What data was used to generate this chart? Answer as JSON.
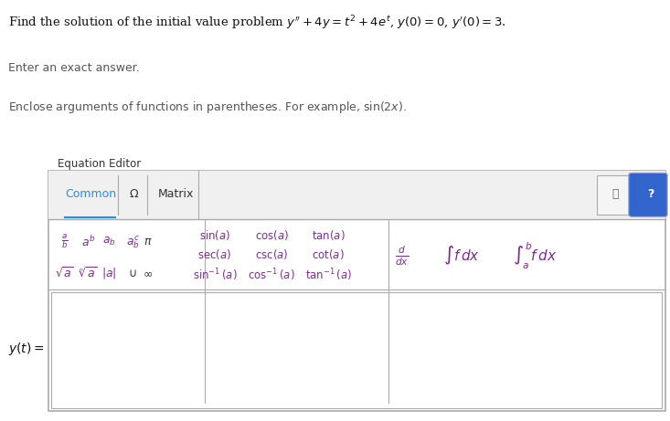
{
  "bg_color": "#ffffff",
  "title_text": "Find the solution of the initial value problem $y'' + 4y = t^2 + 4e^t$, $y(0) = 0$, $y'(0) = 3$.",
  "subtitle1": "Enter an exact answer.",
  "subtitle2": "Enclose arguments of functions in parentheses. For example, $\\sin(2x)$.",
  "eq_editor_label": "Equation Editor",
  "tab_common": "Common",
  "tab_omega": "Ω",
  "tab_matrix": "Matrix",
  "tab_common_color": "#1e90ff",
  "tab_text_color": "#333333",
  "body_text_color": "#555555",
  "purple_color": "#7b2d8b",
  "blue_color": "#4169e1",
  "border_color": "#aaaaaa",
  "toolbar_bg": "#f8f8f8",
  "y_label": "$y(t) =$"
}
